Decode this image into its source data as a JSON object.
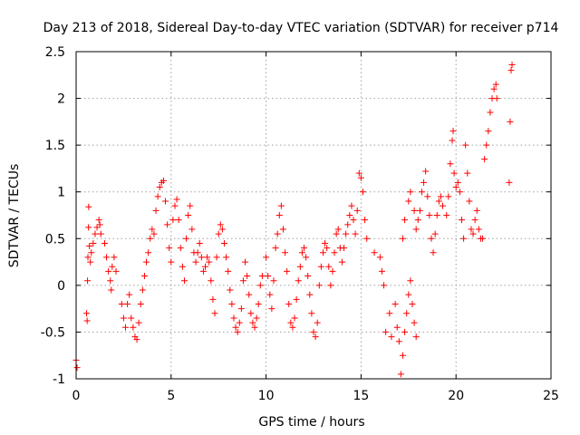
{
  "chart_data": {
    "type": "scatter",
    "title": "Day 213 of 2018, Sidereal Day-to-day VTEC variation (SDTVAR) for receiver p714",
    "xlabel": "GPS time / hours",
    "ylabel": "SDTVAR / TECUs",
    "xlim": [
      0,
      25
    ],
    "ylim": [
      -1,
      2.5
    ],
    "xticks": [
      "0",
      "5",
      "10",
      "15",
      "20",
      "25"
    ],
    "yticks": [
      "-1",
      "-0.5",
      "0",
      "0.5",
      "1",
      "1.5",
      "2",
      "2.5"
    ],
    "grid": true,
    "marker": "+",
    "series_color": "#ff0000",
    "series": [
      {
        "name": "SDTVAR",
        "points": [
          [
            0.0,
            -0.8
          ],
          [
            0.05,
            -0.88
          ],
          [
            0.55,
            -0.3
          ],
          [
            0.58,
            -0.38
          ],
          [
            0.6,
            0.05
          ],
          [
            0.62,
            0.3
          ],
          [
            0.65,
            0.62
          ],
          [
            0.66,
            0.84
          ],
          [
            0.7,
            0.42
          ],
          [
            0.75,
            0.25
          ],
          [
            0.8,
            0.35
          ],
          [
            0.9,
            0.45
          ],
          [
            1.0,
            0.55
          ],
          [
            1.1,
            0.62
          ],
          [
            1.2,
            0.7
          ],
          [
            1.25,
            0.65
          ],
          [
            1.3,
            0.55
          ],
          [
            1.5,
            0.45
          ],
          [
            1.6,
            0.3
          ],
          [
            1.7,
            0.15
          ],
          [
            1.8,
            0.05
          ],
          [
            1.85,
            -0.05
          ],
          [
            1.9,
            0.2
          ],
          [
            2.0,
            0.3
          ],
          [
            2.1,
            0.15
          ],
          [
            2.4,
            -0.2
          ],
          [
            2.5,
            -0.35
          ],
          [
            2.6,
            -0.45
          ],
          [
            2.7,
            -0.2
          ],
          [
            2.8,
            -0.1
          ],
          [
            2.9,
            -0.35
          ],
          [
            3.0,
            -0.45
          ],
          [
            3.1,
            -0.55
          ],
          [
            3.2,
            -0.58
          ],
          [
            3.3,
            -0.4
          ],
          [
            3.4,
            -0.2
          ],
          [
            3.5,
            -0.05
          ],
          [
            3.6,
            0.1
          ],
          [
            3.7,
            0.25
          ],
          [
            3.8,
            0.35
          ],
          [
            3.9,
            0.5
          ],
          [
            4.0,
            0.6
          ],
          [
            4.1,
            0.55
          ],
          [
            4.2,
            0.8
          ],
          [
            4.3,
            0.95
          ],
          [
            4.4,
            1.05
          ],
          [
            4.5,
            1.1
          ],
          [
            4.6,
            1.12
          ],
          [
            4.7,
            0.9
          ],
          [
            4.8,
            0.65
          ],
          [
            4.9,
            0.4
          ],
          [
            5.0,
            0.25
          ],
          [
            5.1,
            0.7
          ],
          [
            5.2,
            0.85
          ],
          [
            5.3,
            0.92
          ],
          [
            5.4,
            0.7
          ],
          [
            5.5,
            0.4
          ],
          [
            5.6,
            0.2
          ],
          [
            5.7,
            0.05
          ],
          [
            5.8,
            0.5
          ],
          [
            5.9,
            0.75
          ],
          [
            6.0,
            0.85
          ],
          [
            6.1,
            0.6
          ],
          [
            6.2,
            0.35
          ],
          [
            6.3,
            0.25
          ],
          [
            6.4,
            0.35
          ],
          [
            6.5,
            0.45
          ],
          [
            6.6,
            0.3
          ],
          [
            6.7,
            0.15
          ],
          [
            6.8,
            0.2
          ],
          [
            6.9,
            0.3
          ],
          [
            7.0,
            0.25
          ],
          [
            7.1,
            0.05
          ],
          [
            7.2,
            -0.15
          ],
          [
            7.3,
            -0.3
          ],
          [
            7.4,
            0.3
          ],
          [
            7.5,
            0.55
          ],
          [
            7.6,
            0.65
          ],
          [
            7.7,
            0.6
          ],
          [
            7.8,
            0.45
          ],
          [
            7.9,
            0.3
          ],
          [
            8.0,
            0.15
          ],
          [
            8.1,
            -0.05
          ],
          [
            8.2,
            -0.2
          ],
          [
            8.3,
            -0.35
          ],
          [
            8.4,
            -0.45
          ],
          [
            8.5,
            -0.5
          ],
          [
            8.6,
            -0.4
          ],
          [
            8.7,
            -0.25
          ],
          [
            8.8,
            0.05
          ],
          [
            8.9,
            0.25
          ],
          [
            9.0,
            0.1
          ],
          [
            9.1,
            -0.1
          ],
          [
            9.2,
            -0.3
          ],
          [
            9.3,
            -0.4
          ],
          [
            9.4,
            -0.45
          ],
          [
            9.5,
            -0.35
          ],
          [
            9.6,
            -0.2
          ],
          [
            9.7,
            0.0
          ],
          [
            9.8,
            0.1
          ],
          [
            10.0,
            0.3
          ],
          [
            10.1,
            0.1
          ],
          [
            10.2,
            -0.1
          ],
          [
            10.3,
            -0.25
          ],
          [
            10.4,
            0.05
          ],
          [
            10.5,
            0.4
          ],
          [
            10.6,
            0.55
          ],
          [
            10.7,
            0.75
          ],
          [
            10.8,
            0.85
          ],
          [
            10.9,
            0.6
          ],
          [
            11.0,
            0.35
          ],
          [
            11.1,
            0.15
          ],
          [
            11.2,
            -0.2
          ],
          [
            11.3,
            -0.4
          ],
          [
            11.4,
            -0.45
          ],
          [
            11.5,
            -0.35
          ],
          [
            11.6,
            -0.15
          ],
          [
            11.7,
            0.05
          ],
          [
            11.8,
            0.2
          ],
          [
            11.9,
            0.35
          ],
          [
            12.0,
            0.4
          ],
          [
            12.1,
            0.3
          ],
          [
            12.2,
            0.1
          ],
          [
            12.3,
            -0.1
          ],
          [
            12.4,
            -0.3
          ],
          [
            12.5,
            -0.5
          ],
          [
            12.6,
            -0.55
          ],
          [
            12.7,
            -0.4
          ],
          [
            12.8,
            0.0
          ],
          [
            12.9,
            0.2
          ],
          [
            13.0,
            0.35
          ],
          [
            13.1,
            0.45
          ],
          [
            13.2,
            0.4
          ],
          [
            13.3,
            0.2
          ],
          [
            13.4,
            0.0
          ],
          [
            13.5,
            0.15
          ],
          [
            13.6,
            0.35
          ],
          [
            13.7,
            0.55
          ],
          [
            13.8,
            0.6
          ],
          [
            13.9,
            0.4
          ],
          [
            14.0,
            0.25
          ],
          [
            14.1,
            0.4
          ],
          [
            14.2,
            0.55
          ],
          [
            14.3,
            0.65
          ],
          [
            14.4,
            0.75
          ],
          [
            14.5,
            0.85
          ],
          [
            14.6,
            0.7
          ],
          [
            14.7,
            0.55
          ],
          [
            14.8,
            0.8
          ],
          [
            14.9,
            1.2
          ],
          [
            15.0,
            1.15
          ],
          [
            15.1,
            1.0
          ],
          [
            15.2,
            0.7
          ],
          [
            15.3,
            0.5
          ],
          [
            15.7,
            0.35
          ],
          [
            16.0,
            0.3
          ],
          [
            16.1,
            0.15
          ],
          [
            16.2,
            0.0
          ],
          [
            16.3,
            -0.5
          ],
          [
            16.5,
            -0.3
          ],
          [
            16.6,
            -0.55
          ],
          [
            16.8,
            -0.2
          ],
          [
            16.9,
            -0.45
          ],
          [
            17.0,
            -0.6
          ],
          [
            17.1,
            -0.95
          ],
          [
            17.2,
            -0.75
          ],
          [
            17.3,
            -0.5
          ],
          [
            17.4,
            -0.3
          ],
          [
            17.5,
            -0.1
          ],
          [
            17.6,
            0.05
          ],
          [
            17.7,
            -0.2
          ],
          [
            17.8,
            -0.4
          ],
          [
            17.9,
            -0.55
          ],
          [
            17.2,
            0.5
          ],
          [
            17.3,
            0.7
          ],
          [
            17.5,
            0.9
          ],
          [
            17.6,
            1.0
          ],
          [
            17.8,
            0.8
          ],
          [
            17.9,
            0.6
          ],
          [
            18.0,
            0.7
          ],
          [
            18.1,
            0.8
          ],
          [
            18.2,
            1.0
          ],
          [
            18.3,
            1.1
          ],
          [
            18.4,
            1.22
          ],
          [
            18.5,
            0.95
          ],
          [
            18.6,
            0.75
          ],
          [
            18.7,
            0.5
          ],
          [
            18.8,
            0.35
          ],
          [
            18.9,
            0.55
          ],
          [
            19.0,
            0.75
          ],
          [
            19.1,
            0.9
          ],
          [
            19.2,
            0.95
          ],
          [
            19.3,
            0.85
          ],
          [
            19.5,
            0.75
          ],
          [
            19.6,
            0.95
          ],
          [
            19.7,
            1.3
          ],
          [
            19.8,
            1.55
          ],
          [
            19.85,
            1.65
          ],
          [
            19.9,
            1.2
          ],
          [
            20.0,
            1.05
          ],
          [
            20.1,
            1.1
          ],
          [
            20.2,
            1.0
          ],
          [
            20.3,
            0.7
          ],
          [
            20.4,
            0.5
          ],
          [
            20.5,
            1.5
          ],
          [
            20.6,
            1.2
          ],
          [
            20.7,
            0.9
          ],
          [
            20.8,
            0.6
          ],
          [
            20.9,
            0.55
          ],
          [
            21.0,
            0.7
          ],
          [
            21.1,
            0.8
          ],
          [
            21.2,
            0.6
          ],
          [
            21.3,
            0.5
          ],
          [
            21.4,
            0.5
          ],
          [
            21.5,
            1.35
          ],
          [
            21.6,
            1.5
          ],
          [
            21.7,
            1.65
          ],
          [
            21.8,
            1.85
          ],
          [
            21.9,
            2.0
          ],
          [
            22.0,
            2.1
          ],
          [
            22.1,
            2.15
          ],
          [
            22.15,
            2.0
          ],
          [
            22.8,
            1.1
          ],
          [
            22.85,
            1.75
          ],
          [
            22.9,
            2.3
          ],
          [
            22.95,
            2.36
          ]
        ]
      }
    ]
  }
}
